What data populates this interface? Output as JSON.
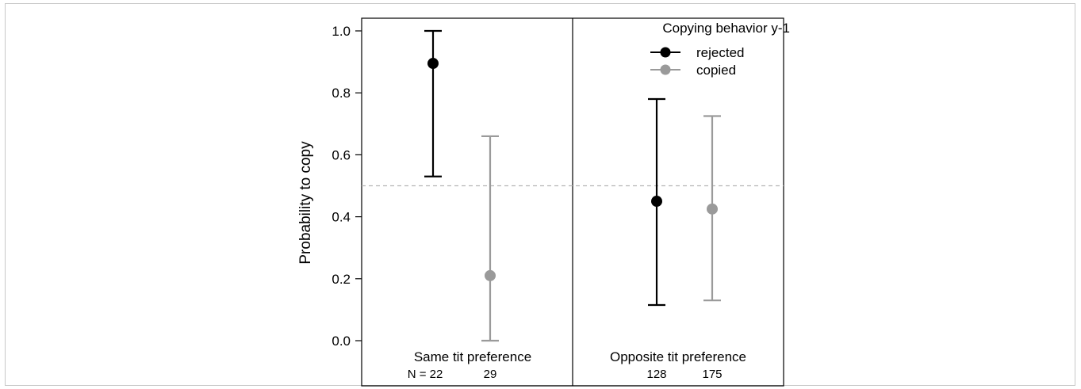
{
  "chart_data": {
    "type": "errorbar",
    "ylabel": "Probability to copy",
    "ylim": [
      -0.1,
      1.04
    ],
    "yticks": [
      0.0,
      0.2,
      0.4,
      0.6,
      0.8,
      1.0
    ],
    "ytick_labels": [
      "0.0",
      "0.2",
      "0.4",
      "0.6",
      "0.8",
      "1.0"
    ],
    "reference_line": 0.5,
    "legend": {
      "title": "Copying behavior y-1",
      "position": "top-right",
      "entries": [
        {
          "label": "rejected",
          "color": "#000000"
        },
        {
          "label": "copied",
          "color": "#999999"
        }
      ]
    },
    "panels": [
      {
        "label": "Same tit preference",
        "points": [
          {
            "series": "rejected",
            "value": 0.895,
            "lower": 0.53,
            "upper": 1.0,
            "n_label": "N = 22"
          },
          {
            "series": "copied",
            "value": 0.21,
            "lower": 0.0,
            "upper": 0.66,
            "n_label": "29"
          }
        ]
      },
      {
        "label": "Opposite tit preference",
        "points": [
          {
            "series": "rejected",
            "value": 0.45,
            "lower": 0.115,
            "upper": 0.78,
            "n_label": "128"
          },
          {
            "series": "copied",
            "value": 0.425,
            "lower": 0.13,
            "upper": 0.725,
            "n_label": "175"
          }
        ]
      }
    ]
  }
}
